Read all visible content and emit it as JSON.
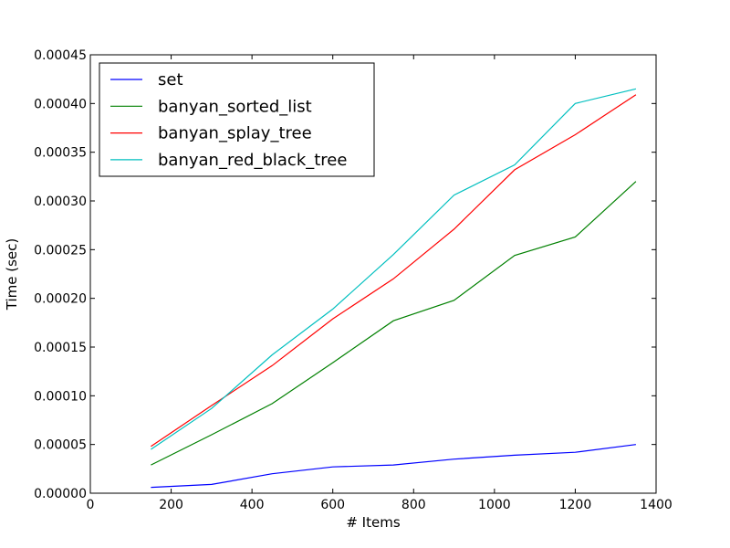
{
  "chart_data": {
    "type": "line",
    "title": "",
    "xlabel": "# Items",
    "ylabel": "Time (sec)",
    "xlim": [
      0,
      1400
    ],
    "ylim": [
      0,
      0.00045
    ],
    "xticks": [
      0,
      200,
      400,
      600,
      800,
      1000,
      1200,
      1400
    ],
    "yticks": [
      0,
      5e-05,
      0.0001,
      0.00015,
      0.0002,
      0.00025,
      0.0003,
      0.00035,
      0.0004,
      0.00045
    ],
    "xtick_labels": [
      "0",
      "200",
      "400",
      "600",
      "800",
      "1000",
      "1200",
      "1400"
    ],
    "ytick_labels": [
      "0.00000",
      "0.00005",
      "0.00010",
      "0.00015",
      "0.00020",
      "0.00025",
      "0.00030",
      "0.00035",
      "0.00040",
      "0.00045"
    ],
    "grid": false,
    "legend_position": "top-left",
    "x": [
      150,
      300,
      450,
      600,
      750,
      900,
      1050,
      1200,
      1350
    ],
    "series": [
      {
        "name": "set",
        "color": "#0000ff",
        "values": [
          6e-06,
          9e-06,
          2e-05,
          2.7e-05,
          2.9e-05,
          3.5e-05,
          3.9e-05,
          4.2e-05,
          5e-05
        ]
      },
      {
        "name": "banyan_sorted_list",
        "color": "#008000",
        "values": [
          2.9e-05,
          6e-05,
          9.2e-05,
          0.000134,
          0.000177,
          0.000198,
          0.000244,
          0.000263,
          0.00032
        ]
      },
      {
        "name": "banyan_splay_tree",
        "color": "#ff0000",
        "values": [
          4.8e-05,
          9e-05,
          0.000131,
          0.000179,
          0.00022,
          0.000271,
          0.000332,
          0.000368,
          0.000409
        ]
      },
      {
        "name": "banyan_red_black_tree",
        "color": "#00bfbf",
        "values": [
          4.5e-05,
          8.7e-05,
          0.000142,
          0.000189,
          0.000245,
          0.000306,
          0.000337,
          0.0004,
          0.000415
        ]
      }
    ]
  }
}
